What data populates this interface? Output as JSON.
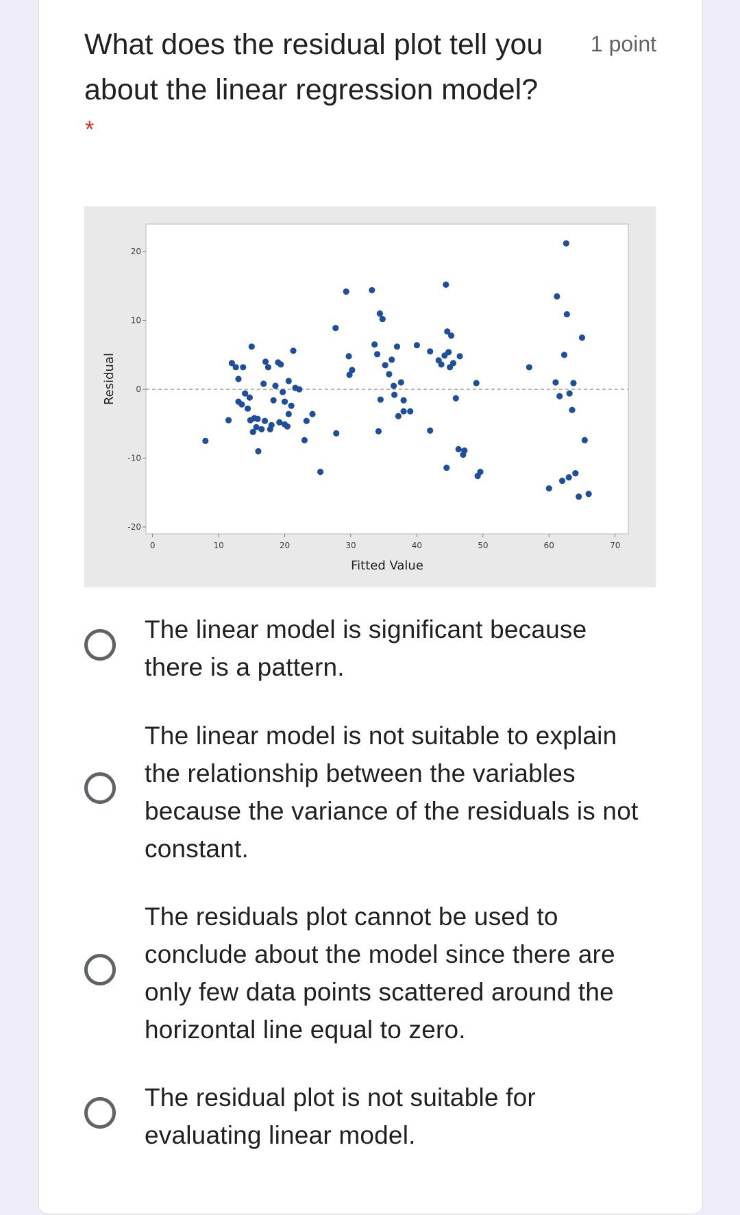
{
  "question": {
    "title": "What does the residual plot tell you about the linear regression model?",
    "points": "1 point",
    "required_marker": "*"
  },
  "options": [
    {
      "label": "The linear model is significant because there is a pattern."
    },
    {
      "label": "The linear model is not suitable to explain the relationship between the variables because the variance of the residuals is not constant."
    },
    {
      "label": "The residuals plot cannot be used to conclude about the model since there are only few data points scattered around the horizontal line equal to zero."
    },
    {
      "label": "The residual plot is not suitable for evaluating linear model."
    }
  ],
  "chart_data": {
    "type": "scatter",
    "title": "",
    "xlabel": "Fitted Value",
    "ylabel": "Residual",
    "xlim": [
      -1,
      72
    ],
    "ylim": [
      -21,
      24
    ],
    "x_ticks": [
      0,
      10,
      20,
      30,
      40,
      50,
      60,
      70
    ],
    "y_ticks": [
      -20,
      -10,
      0,
      10,
      20
    ],
    "reference_line": {
      "y": 0,
      "style": "dashed"
    },
    "grid": false,
    "point_color": "#1f4e9c",
    "points": [
      [
        8,
        -7.5
      ],
      [
        11.5,
        -4.5
      ],
      [
        12,
        3.8
      ],
      [
        12.6,
        3.2
      ],
      [
        13,
        -1.8
      ],
      [
        13,
        1.5
      ],
      [
        13.5,
        -2.2
      ],
      [
        13.7,
        3.2
      ],
      [
        14,
        -0.6
      ],
      [
        14.4,
        -2.8
      ],
      [
        14.7,
        -1.2
      ],
      [
        14.8,
        -4.5
      ],
      [
        15,
        6.2
      ],
      [
        15.2,
        -6.2
      ],
      [
        15.4,
        -4.2
      ],
      [
        15.7,
        -5.5
      ],
      [
        15.9,
        -4.3
      ],
      [
        16,
        -9
      ],
      [
        16.5,
        -5.8
      ],
      [
        16.8,
        0.8
      ],
      [
        17,
        -4.6
      ],
      [
        17.1,
        4.0
      ],
      [
        17.5,
        3.2
      ],
      [
        17.8,
        -5.8
      ],
      [
        18,
        -5.2
      ],
      [
        18.3,
        -1.6
      ],
      [
        18.6,
        0.5
      ],
      [
        19,
        3.9
      ],
      [
        19.2,
        -4.8
      ],
      [
        19.4,
        3.6
      ],
      [
        19.7,
        -0.4
      ],
      [
        20,
        -5.1
      ],
      [
        20,
        -1.8
      ],
      [
        20.4,
        -5.4
      ],
      [
        20.6,
        -3.6
      ],
      [
        20.6,
        1.2
      ],
      [
        21,
        -2.4
      ],
      [
        21.3,
        5.6
      ],
      [
        21.6,
        0.2
      ],
      [
        22.2,
        0
      ],
      [
        23,
        -7.4
      ],
      [
        23.3,
        -4.6
      ],
      [
        24.2,
        -3.6
      ],
      [
        25.4,
        -12
      ],
      [
        27.7,
        8.9
      ],
      [
        27.8,
        -6.4
      ],
      [
        29.3,
        14.2
      ],
      [
        29.7,
        4.8
      ],
      [
        29.8,
        2.1
      ],
      [
        30.2,
        2.8
      ],
      [
        33.2,
        14.4
      ],
      [
        33.6,
        6.5
      ],
      [
        34,
        5.1
      ],
      [
        34.2,
        -6.1
      ],
      [
        34.4,
        11.0
      ],
      [
        34.5,
        -1.5
      ],
      [
        34.8,
        10.2
      ],
      [
        35.2,
        3.5
      ],
      [
        35.8,
        2.2
      ],
      [
        36.2,
        4.3
      ],
      [
        36.5,
        0.5
      ],
      [
        36.6,
        -0.8
      ],
      [
        37,
        6.2
      ],
      [
        37.2,
        -3.9
      ],
      [
        37.6,
        1.0
      ],
      [
        38,
        -1.6
      ],
      [
        38,
        -3.2
      ],
      [
        39,
        -3.2
      ],
      [
        40,
        6.4
      ],
      [
        42,
        -6
      ],
      [
        42,
        5.5
      ],
      [
        43.3,
        4.2
      ],
      [
        43.7,
        3.6
      ],
      [
        44.2,
        4.9
      ],
      [
        44.4,
        15.2
      ],
      [
        44.5,
        -11.4
      ],
      [
        44.6,
        8.4
      ],
      [
        44.8,
        5.4
      ],
      [
        45,
        3.2
      ],
      [
        45.2,
        7.8
      ],
      [
        45.5,
        3.8
      ],
      [
        45.9,
        -1.3
      ],
      [
        46.3,
        -8.7
      ],
      [
        46.5,
        4.8
      ],
      [
        47,
        -9.5
      ],
      [
        47.2,
        -8.9
      ],
      [
        49,
        0.9
      ],
      [
        49.2,
        -12.6
      ],
      [
        49.6,
        -12.0
      ],
      [
        57,
        3.2
      ],
      [
        60,
        -14.4
      ],
      [
        61,
        1.0
      ],
      [
        61.2,
        13.5
      ],
      [
        61.6,
        -1.0
      ],
      [
        62,
        -13.3
      ],
      [
        62.3,
        5.0
      ],
      [
        62.6,
        21.2
      ],
      [
        62.7,
        10.9
      ],
      [
        63,
        -12.8
      ],
      [
        63.1,
        -0.6
      ],
      [
        63.5,
        -3.0
      ],
      [
        63.7,
        0.9
      ],
      [
        64,
        -12.2
      ],
      [
        64.5,
        -15.6
      ],
      [
        65,
        7.5
      ],
      [
        65.4,
        -7.4
      ],
      [
        66,
        -15.2
      ]
    ]
  }
}
